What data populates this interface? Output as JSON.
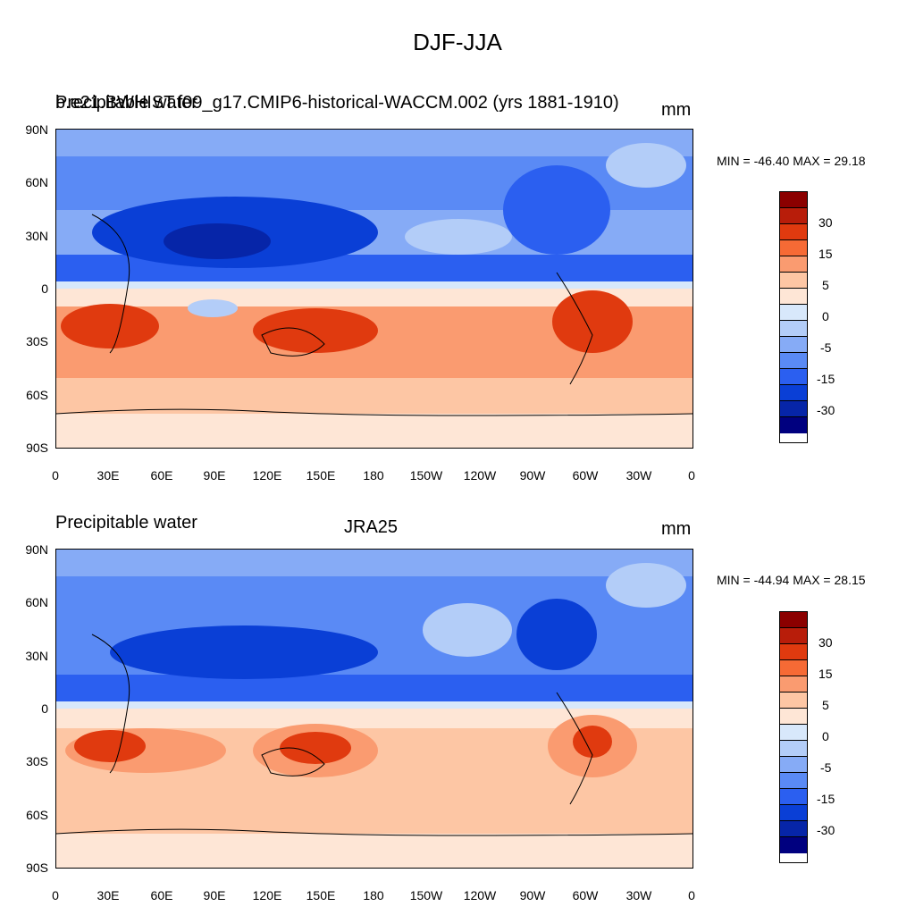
{
  "title": "DJF-JJA",
  "colorbar": {
    "colors": [
      "#8b0000",
      "#b81d0a",
      "#e03a0f",
      "#f66a35",
      "#fa9b70",
      "#fdc6a4",
      "#fee6d6",
      "#d8e8fb",
      "#b3cdf8",
      "#86abf6",
      "#5a8af5",
      "#2b5ff0",
      "#0a3fd6",
      "#0625a8",
      "#00007f"
    ],
    "labels": [
      "30",
      "15",
      "5",
      "0",
      "-5",
      "-15",
      "-30"
    ]
  },
  "panels": [
    {
      "left_label": "Precipitable water",
      "center_label": "b.e21.BWHIST.f09_g17.CMIP6-historical-WACCM.002 (yrs 1881-1910)",
      "right_label": "mm",
      "minmax": "MIN = -46.40 MAX =  29.18",
      "lat_ticks": [
        "90N",
        "60N",
        "30N",
        "0",
        "30S",
        "60S",
        "90S"
      ],
      "lon_ticks": [
        "0",
        "30E",
        "60E",
        "90E",
        "120E",
        "150E",
        "180",
        "150W",
        "120W",
        "90W",
        "60W",
        "30W",
        "0"
      ]
    },
    {
      "left_label": "Precipitable water",
      "center_label": "JRA25",
      "right_label": "mm",
      "minmax": "MIN = -44.94 MAX =  28.15",
      "lat_ticks": [
        "90N",
        "60N",
        "30N",
        "0",
        "30S",
        "60S",
        "90S"
      ],
      "lon_ticks": [
        "0",
        "30E",
        "60E",
        "90E",
        "120E",
        "150E",
        "180",
        "150W",
        "120W",
        "90W",
        "60W",
        "30W",
        "0"
      ]
    }
  ]
}
